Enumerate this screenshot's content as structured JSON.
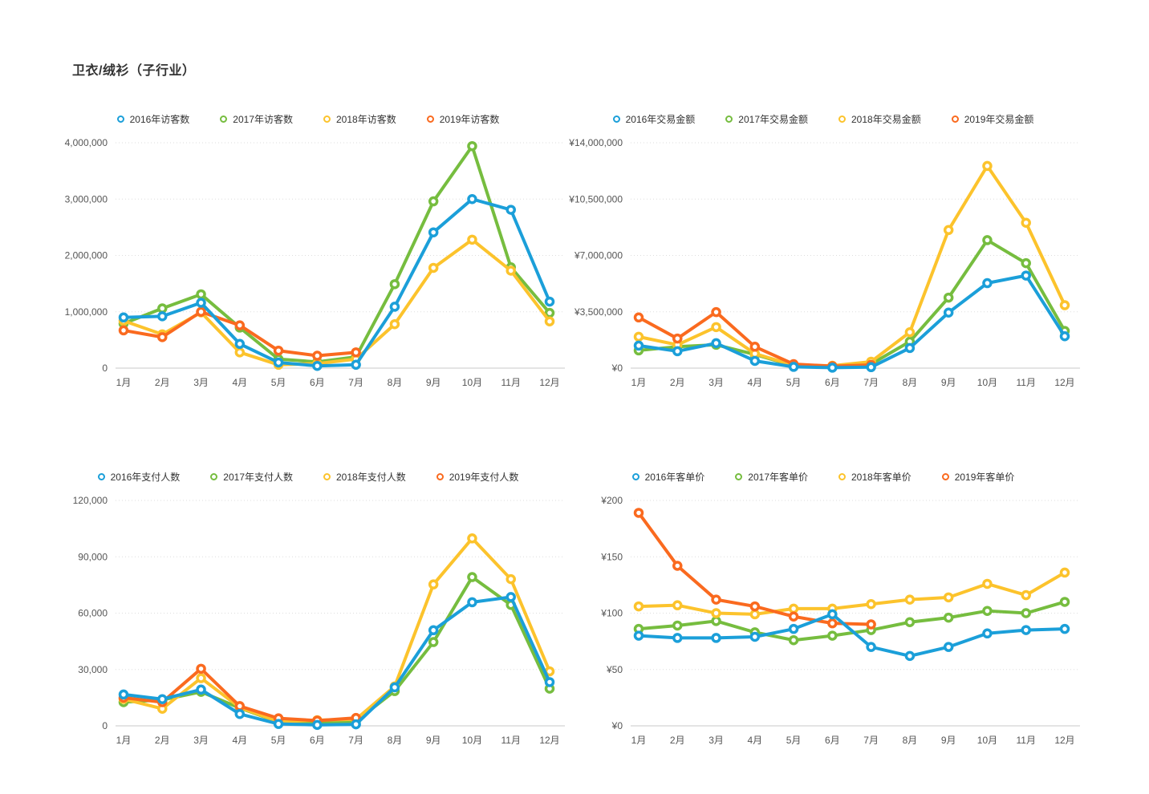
{
  "page": {
    "title": "卫衣/绒衫（子行业）"
  },
  "palette": {
    "y2016": "#1B9FD9",
    "y2017": "#76BD3F",
    "y2018": "#FCC32C",
    "y2019": "#FA6A1F"
  },
  "chart_data": [
    {
      "type": "line",
      "metric": "访客数",
      "legend_position": "top",
      "grid": true,
      "categories": [
        "1月",
        "2月",
        "3月",
        "4月",
        "5月",
        "6月",
        "7月",
        "8月",
        "9月",
        "10月",
        "11月",
        "12月"
      ],
      "ylim": [
        0,
        4000000
      ],
      "yticks": [
        0,
        1000000,
        2000000,
        3000000,
        4000000
      ],
      "ytick_labels": [
        "0",
        "1,000,000",
        "2,000,000",
        "3,000,000",
        "4,000,000"
      ],
      "draw_order": [
        1,
        2,
        3,
        0
      ],
      "series": [
        {
          "name": "2016年访客数",
          "color": "#1B9FD9",
          "values": [
            900000,
            920000,
            1160000,
            430000,
            100000,
            40000,
            60000,
            1090000,
            2410000,
            3000000,
            2810000,
            1180000
          ]
        },
        {
          "name": "2017年访客数",
          "color": "#76BD3F",
          "values": [
            790000,
            1060000,
            1310000,
            720000,
            160000,
            110000,
            200000,
            1490000,
            2960000,
            3940000,
            1790000,
            980000
          ]
        },
        {
          "name": "2018年访客数",
          "color": "#FCC32C",
          "values": [
            840000,
            600000,
            990000,
            280000,
            60000,
            80000,
            160000,
            780000,
            1780000,
            2280000,
            1730000,
            830000
          ]
        },
        {
          "name": "2019年访客数",
          "color": "#FA6A1F",
          "values": [
            670000,
            550000,
            1000000,
            760000,
            310000,
            220000,
            280000
          ]
        }
      ]
    },
    {
      "type": "line",
      "metric": "交易金额",
      "legend_position": "top",
      "grid": true,
      "categories": [
        "1月",
        "2月",
        "3月",
        "4月",
        "5月",
        "6月",
        "7月",
        "8月",
        "9月",
        "10月",
        "11月",
        "12月"
      ],
      "ylim": [
        0,
        14000000
      ],
      "yticks": [
        0,
        3500000,
        7000000,
        10500000,
        14000000
      ],
      "ytick_labels": [
        "¥0",
        "¥3,500,000",
        "¥7,000,000",
        "¥10,500,000",
        "¥14,000,000"
      ],
      "draw_order": [
        1,
        2,
        3,
        0
      ],
      "series": [
        {
          "name": "2016年交易金额",
          "color": "#1B9FD9",
          "values": [
            1400000,
            1050000,
            1550000,
            450000,
            80000,
            30000,
            60000,
            1250000,
            3450000,
            5280000,
            5750000,
            1980000
          ]
        },
        {
          "name": "2017年交易金额",
          "color": "#76BD3F",
          "values": [
            1100000,
            1330000,
            1450000,
            850000,
            150000,
            120000,
            250000,
            1650000,
            4380000,
            7950000,
            6520000,
            2310000
          ]
        },
        {
          "name": "2018年交易金额",
          "color": "#FCC32C",
          "values": [
            1950000,
            1450000,
            2550000,
            900000,
            180000,
            150000,
            400000,
            2230000,
            8580000,
            12560000,
            9030000,
            3910000
          ]
        },
        {
          "name": "2019年交易金额",
          "color": "#FA6A1F",
          "values": [
            3150000,
            1840000,
            3480000,
            1330000,
            250000,
            120000,
            200000
          ]
        }
      ]
    },
    {
      "type": "line",
      "metric": "支付人数",
      "legend_position": "top",
      "grid": true,
      "categories": [
        "1月",
        "2月",
        "3月",
        "4月",
        "5月",
        "6月",
        "7月",
        "8月",
        "9月",
        "10月",
        "11月",
        "12月"
      ],
      "ylim": [
        0,
        120000
      ],
      "yticks": [
        0,
        30000,
        60000,
        90000,
        120000
      ],
      "ytick_labels": [
        "0",
        "30,000",
        "60,000",
        "90,000",
        "120,000"
      ],
      "draw_order": [
        1,
        2,
        3,
        0
      ],
      "series": [
        {
          "name": "2016年支付人数",
          "color": "#1B9FD9",
          "values": [
            16700,
            14200,
            19300,
            6300,
            1000,
            500,
            800,
            20500,
            50900,
            65800,
            68600,
            23300
          ]
        },
        {
          "name": "2017年支付人数",
          "color": "#76BD3F",
          "values": [
            12600,
            13800,
            18100,
            9500,
            2000,
            1500,
            2500,
            18500,
            44600,
            79200,
            64400,
            19800
          ]
        },
        {
          "name": "2018年支付人数",
          "color": "#FCC32C",
          "values": [
            14300,
            9100,
            25400,
            9800,
            2200,
            3000,
            3500,
            21000,
            75300,
            99800,
            78100,
            29000
          ]
        },
        {
          "name": "2019年支付人数",
          "color": "#FA6A1F",
          "values": [
            15000,
            12600,
            30400,
            10500,
            4000,
            2800,
            4200
          ]
        }
      ]
    },
    {
      "type": "line",
      "metric": "客单价",
      "legend_position": "top",
      "grid": true,
      "categories": [
        "1月",
        "2月",
        "3月",
        "4月",
        "5月",
        "6月",
        "7月",
        "8月",
        "9月",
        "10月",
        "11月",
        "12月"
      ],
      "ylim": [
        0,
        200
      ],
      "yticks": [
        0,
        50,
        100,
        150,
        200
      ],
      "ytick_labels": [
        "¥0",
        "¥50",
        "¥100",
        "¥150",
        "¥200"
      ],
      "draw_order": [
        1,
        2,
        3,
        0
      ],
      "series": [
        {
          "name": "2016年客单价",
          "color": "#1B9FD9",
          "values": [
            80,
            78,
            78,
            79,
            86,
            99,
            70,
            62,
            70,
            82,
            85,
            86
          ]
        },
        {
          "name": "2017年客单价",
          "color": "#76BD3F",
          "values": [
            86,
            89,
            93,
            83,
            76,
            80,
            85,
            92,
            96,
            102,
            100,
            110
          ]
        },
        {
          "name": "2018年客单价",
          "color": "#FCC32C",
          "values": [
            106,
            107,
            100,
            99,
            104,
            104,
            108,
            112,
            114,
            126,
            116,
            136
          ]
        },
        {
          "name": "2019年客单价",
          "color": "#FA6A1F",
          "values": [
            189,
            142,
            112,
            106,
            97,
            91,
            90
          ]
        }
      ]
    }
  ]
}
